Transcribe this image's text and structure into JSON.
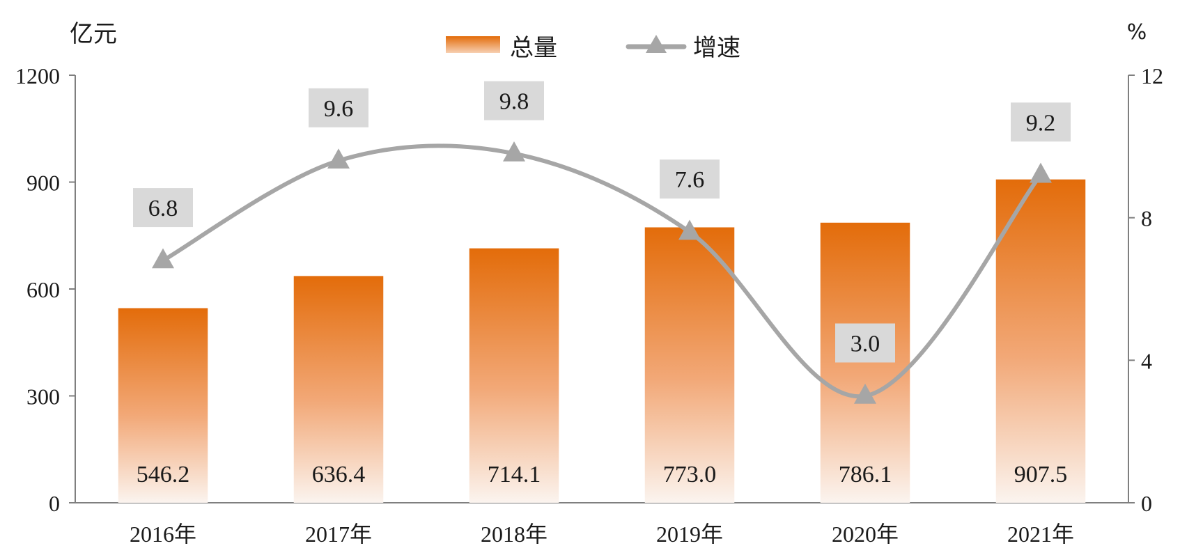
{
  "chart_data": {
    "type": "bar",
    "categories": [
      "2016年",
      "2017年",
      "2018年",
      "2019年",
      "2020年",
      "2021年"
    ],
    "series": [
      {
        "name": "总量",
        "type": "bar",
        "axis": "left",
        "values": [
          546.2,
          636.4,
          714.1,
          773.0,
          786.1,
          907.5
        ],
        "labels": [
          "546.2",
          "636.4",
          "714.1",
          "773.0",
          "786.1",
          "907.5"
        ],
        "color": "#e36c0a"
      },
      {
        "name": "增速",
        "type": "line",
        "axis": "right",
        "values": [
          6.8,
          9.6,
          9.8,
          7.6,
          3.0,
          9.2
        ],
        "labels": [
          "6.8",
          "9.6",
          "9.8",
          "7.6",
          "3.0",
          "9.2"
        ],
        "color": "#a6a6a6",
        "marker": "triangle"
      }
    ],
    "left_axis": {
      "unit": "亿元",
      "ylim": [
        0,
        1200
      ],
      "ticks": [
        0,
        300,
        600,
        900,
        1200
      ],
      "tick_labels": [
        "0",
        "300",
        "600",
        "900",
        "1200"
      ]
    },
    "right_axis": {
      "unit": "%",
      "ylim": [
        0,
        12
      ],
      "ticks": [
        0,
        4,
        8,
        12
      ],
      "tick_labels": [
        "0",
        "4",
        "8",
        "12"
      ]
    },
    "legend": {
      "position": "top-center"
    },
    "grid": false
  }
}
